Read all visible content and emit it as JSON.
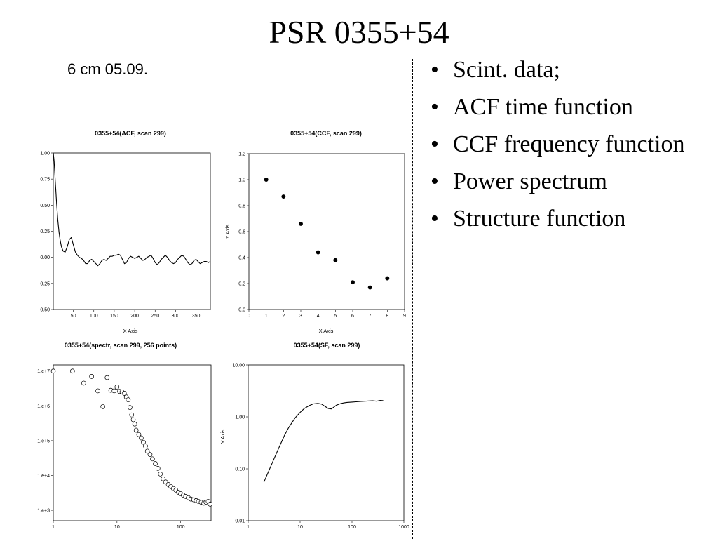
{
  "slide": {
    "title": "PSR 0355+54",
    "caption": "6 cm   05.09.",
    "bullets": [
      "Scint. data;",
      "ACF time function",
      "CCF frequency function",
      "Power spectrum",
      "Structure function"
    ]
  },
  "chart_data": [
    {
      "type": "line",
      "title": "0355+54(ACF, scan 299)",
      "xlabel": "X Axis",
      "ylabel": "",
      "xlim": [
        1,
        385
      ],
      "ylim": [
        -0.5,
        1.0
      ],
      "xticks": [
        50,
        100,
        150,
        200,
        250,
        300,
        350
      ],
      "yticks": [
        -0.5,
        -0.25,
        0.0,
        0.25,
        0.5,
        0.75,
        1.0
      ],
      "yticklabels": [
        "-0.50",
        "-0.25",
        "0.00",
        "0.25",
        "0.50",
        "0.75",
        "1.00"
      ],
      "x": [
        1,
        3,
        6,
        9,
        12,
        15,
        18,
        21,
        25,
        30,
        35,
        40,
        45,
        50,
        55,
        60,
        65,
        70,
        75,
        80,
        85,
        90,
        95,
        100,
        105,
        110,
        115,
        120,
        125,
        130,
        135,
        140,
        145,
        150,
        155,
        160,
        165,
        170,
        175,
        180,
        185,
        190,
        195,
        200,
        205,
        210,
        215,
        220,
        225,
        230,
        235,
        240,
        245,
        250,
        255,
        260,
        265,
        270,
        275,
        280,
        285,
        290,
        295,
        300,
        305,
        310,
        315,
        320,
        325,
        330,
        335,
        340,
        345,
        350,
        355,
        360,
        365,
        370,
        375,
        380,
        385
      ],
      "values": [
        1.0,
        0.92,
        0.72,
        0.52,
        0.36,
        0.24,
        0.16,
        0.1,
        0.06,
        0.05,
        0.1,
        0.17,
        0.19,
        0.12,
        0.05,
        0.02,
        0.0,
        -0.01,
        -0.03,
        -0.06,
        -0.06,
        -0.03,
        -0.02,
        -0.04,
        -0.06,
        -0.08,
        -0.06,
        -0.03,
        -0.02,
        -0.03,
        -0.01,
        0.01,
        0.01,
        0.02,
        0.02,
        0.03,
        0.02,
        -0.02,
        -0.06,
        -0.05,
        -0.01,
        0.01,
        0.0,
        -0.01,
        0.0,
        0.01,
        -0.01,
        -0.03,
        -0.02,
        0.0,
        0.01,
        0.02,
        -0.01,
        -0.05,
        -0.07,
        -0.05,
        -0.02,
        0.0,
        0.02,
        0.0,
        -0.03,
        -0.05,
        -0.06,
        -0.05,
        -0.02,
        0.0,
        0.02,
        0.01,
        -0.02,
        -0.05,
        -0.07,
        -0.06,
        -0.03,
        -0.02,
        -0.04,
        -0.06,
        -0.05,
        -0.04,
        -0.04,
        -0.05,
        -0.04
      ]
    },
    {
      "type": "scatter",
      "title": "0355+54(CCF, scan 299)",
      "xlabel": "X Axis",
      "ylabel": "Y Axis",
      "xlim": [
        0,
        9
      ],
      "ylim": [
        0.0,
        1.2
      ],
      "xticks": [
        0,
        1,
        2,
        3,
        4,
        5,
        6,
        7,
        8,
        9
      ],
      "yticks": [
        0.0,
        0.2,
        0.4,
        0.6,
        0.8,
        1.0,
        1.2
      ],
      "yticklabels": [
        "0.0",
        "0.2",
        "0.4",
        "0.6",
        "0.8",
        "1.0",
        "1.2"
      ],
      "x": [
        1,
        2,
        3,
        4,
        5,
        6,
        7,
        8
      ],
      "values": [
        1.0,
        0.87,
        0.66,
        0.44,
        0.38,
        0.21,
        0.17,
        0.24
      ]
    },
    {
      "type": "scatter",
      "title": "0355+54(spectr, scan 299, 256 points)",
      "xlabel": "",
      "ylabel": "",
      "xscale": "log",
      "yscale": "log",
      "xlim": [
        1,
        300
      ],
      "ylim": [
        500,
        15000000
      ],
      "xticks": [
        1,
        10,
        100
      ],
      "yticks": [
        1000,
        10000,
        100000,
        1000000,
        10000000
      ],
      "xticklabels": [
        "1",
        "10",
        "100"
      ],
      "yticklabels": [
        "1.e+3",
        "1.e+4",
        "1.e+5",
        "1.e+6",
        "1.e+7"
      ],
      "x": [
        1,
        2,
        3,
        4,
        5,
        6,
        7,
        8,
        9,
        10,
        11,
        12,
        13,
        14,
        15,
        16,
        17,
        18,
        19,
        20,
        22,
        24,
        26,
        28,
        30,
        33,
        36,
        40,
        44,
        48,
        53,
        58,
        64,
        70,
        77,
        84,
        92,
        100,
        110,
        120,
        132,
        145,
        160,
        175,
        190,
        210,
        230,
        250,
        270,
        290
      ],
      "values": [
        10000000,
        10000000,
        4500000,
        7000000,
        2700000,
        950000,
        6500000,
        2800000,
        2700000,
        3500000,
        2600000,
        2500000,
        2300000,
        1800000,
        1500000,
        900000,
        550000,
        400000,
        300000,
        200000,
        150000,
        120000,
        90000,
        70000,
        50000,
        40000,
        30000,
        22000,
        16000,
        11000,
        8000,
        6500,
        5500,
        4800,
        4200,
        3800,
        3300,
        3000,
        2700,
        2500,
        2300,
        2100,
        2000,
        1900,
        1800,
        1700,
        1600,
        1700,
        1800,
        1500
      ]
    },
    {
      "type": "line",
      "title": "0355+54(SF, scan 299)",
      "xlabel": "",
      "ylabel": "Y Axis",
      "xscale": "log",
      "yscale": "log",
      "xlim": [
        1,
        1000
      ],
      "ylim": [
        0.01,
        10.0
      ],
      "xticks": [
        1,
        10,
        100,
        1000
      ],
      "yticks": [
        0.01,
        0.1,
        1.0,
        10.0
      ],
      "xticklabels": [
        "1",
        "10",
        "100",
        "1000"
      ],
      "yticklabels": [
        "0.01",
        "0.10",
        "1.00",
        "10.00"
      ],
      "x": [
        2,
        3,
        4,
        5,
        6,
        8,
        10,
        12,
        15,
        18,
        22,
        26,
        30,
        35,
        40,
        45,
        50,
        60,
        70,
        80,
        100,
        120,
        150,
        200,
        250,
        300,
        350,
        400
      ],
      "values": [
        0.055,
        0.14,
        0.27,
        0.44,
        0.62,
        0.95,
        1.22,
        1.45,
        1.65,
        1.78,
        1.82,
        1.76,
        1.6,
        1.45,
        1.42,
        1.55,
        1.68,
        1.8,
        1.86,
        1.9,
        1.93,
        1.95,
        1.98,
        2.02,
        2.04,
        2.0,
        2.08,
        2.05
      ]
    }
  ]
}
